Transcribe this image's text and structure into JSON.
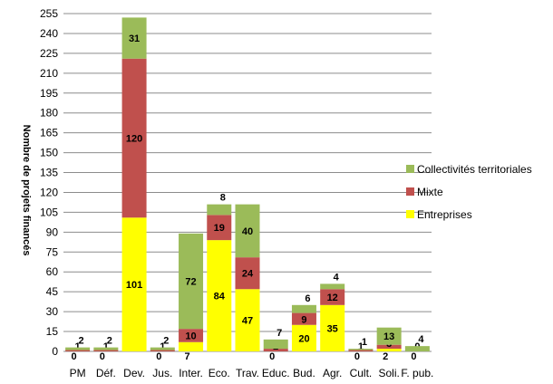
{
  "chart_data": {
    "type": "bar",
    "stacked": true,
    "ylabel": "Nombre de projets financés",
    "ylim": [
      0,
      255
    ],
    "yticks": [
      0,
      15,
      30,
      45,
      60,
      75,
      90,
      105,
      120,
      135,
      150,
      165,
      180,
      195,
      210,
      225,
      240,
      255
    ],
    "grid": true,
    "legend_position": "right",
    "categories": [
      "PM",
      "Déf.",
      "Dev.",
      "Jus.",
      "Inter.",
      "Eco.",
      "Trav.",
      "Educ.",
      "Bud.",
      "Agr.",
      "Cult.",
      "Soli.",
      "F. pub."
    ],
    "series": [
      {
        "name": "Entreprises",
        "color": "#ffff00",
        "values": [
          0,
          0,
          101,
          0,
          7,
          84,
          47,
          0,
          20,
          35,
          0,
          2,
          0
        ]
      },
      {
        "name": "Mixte",
        "color": "#c0504d",
        "values": [
          1,
          1,
          120,
          1,
          10,
          19,
          24,
          2,
          9,
          12,
          1,
          3,
          0
        ]
      },
      {
        "name": "Collectivités territoriales",
        "color": "#9bbb59",
        "values": [
          2,
          2,
          31,
          2,
          72,
          8,
          40,
          7,
          6,
          4,
          1,
          13,
          4
        ]
      }
    ]
  }
}
